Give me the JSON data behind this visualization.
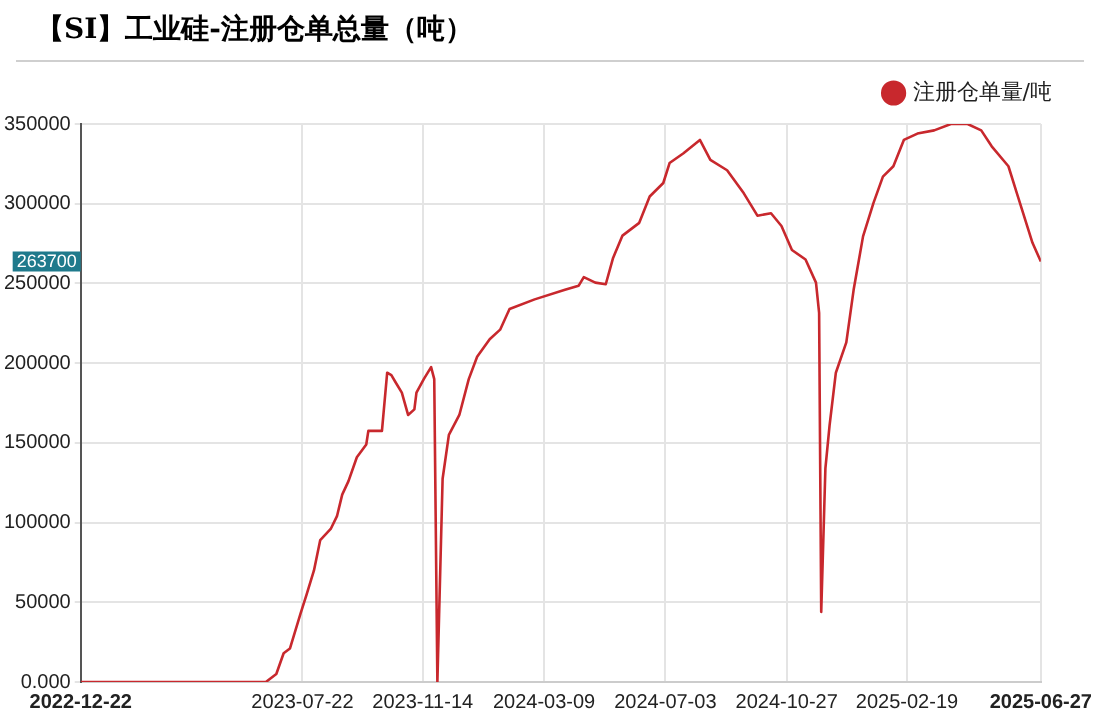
{
  "chart_data": {
    "type": "line",
    "title": "【SI】工业硅-注册仓单总量（吨）",
    "x": [
      "2022-12-22",
      "2023-06-17",
      "2023-06-27",
      "2023-07-04",
      "2023-07-10",
      "2023-07-20",
      "2023-07-26",
      "2023-08-02",
      "2023-08-08",
      "2023-08-18",
      "2023-08-24",
      "2023-08-29",
      "2023-09-04",
      "2023-09-12",
      "2023-09-21",
      "2023-09-23",
      "2023-10-06",
      "2023-10-11",
      "2023-10-15",
      "2023-10-19",
      "2023-10-25",
      "2023-10-31",
      "2023-11-06",
      "2023-11-08",
      "2023-11-15",
      "2023-11-22",
      "2023-11-25",
      "2023-11-28",
      "2023-12-03",
      "2023-12-09",
      "2023-12-19",
      "2023-12-28",
      "2024-01-05",
      "2024-01-17",
      "2024-01-27",
      "2024-02-05",
      "2024-02-29",
      "2024-03-29",
      "2024-04-11",
      "2024-04-16",
      "2024-04-27",
      "2024-05-07",
      "2024-05-14",
      "2024-05-23",
      "2024-06-08",
      "2024-06-18",
      "2024-07-01",
      "2024-07-07",
      "2024-07-20",
      "2024-08-05",
      "2024-08-15",
      "2024-08-31",
      "2024-09-16",
      "2024-09-29",
      "2024-10-12",
      "2024-10-22",
      "2024-11-01",
      "2024-11-14",
      "2024-11-24",
      "2024-11-27",
      "2024-11-29",
      "2024-12-03",
      "2024-12-07",
      "2024-12-13",
      "2024-12-23",
      "2024-12-30",
      "2025-01-08",
      "2025-01-18",
      "2025-01-27",
      "2025-02-06",
      "2025-02-16",
      "2025-03-01",
      "2025-03-17",
      "2025-04-02",
      "2025-04-18",
      "2025-05-01",
      "2025-05-11",
      "2025-05-27",
      "2025-06-06",
      "2025-06-19",
      "2025-06-27"
    ],
    "series": [
      {
        "name": "注册仓单量/吨",
        "color": "#c8282d",
        "values": [
          0,
          0,
          5000,
          18000,
          21000,
          42500,
          55000,
          70000,
          89000,
          96000,
          104000,
          117500,
          126000,
          141000,
          149000,
          157500,
          157500,
          194000,
          192500,
          188000,
          181500,
          167500,
          171000,
          181500,
          190000,
          197500,
          190000,
          0,
          127500,
          155000,
          167500,
          190000,
          204000,
          215000,
          221000,
          234000,
          240000,
          246000,
          248500,
          254000,
          250500,
          249500,
          266000,
          280000,
          288000,
          304500,
          313000,
          325500,
          331500,
          340000,
          327500,
          321000,
          306500,
          292500,
          294000,
          286000,
          271000,
          265000,
          250500,
          231500,
          44000,
          134000,
          161000,
          194000,
          213000,
          246000,
          279500,
          300500,
          317000,
          323500,
          340000,
          344000,
          346000,
          350000,
          350000,
          346000,
          336000,
          323500,
          302500,
          275500,
          263700
        ]
      }
    ],
    "xlim": [
      "2022-12-22",
      "2025-06-27"
    ],
    "xticks": [
      "2022-12-22",
      "2023-07-22",
      "2023-11-14",
      "2024-03-09",
      "2024-07-03",
      "2024-10-27",
      "2025-02-19",
      "2025-06-27"
    ],
    "ylim": [
      0,
      350000
    ],
    "yticks": [
      {
        "value": 0,
        "label": "0.000"
      },
      50000,
      100000,
      150000,
      200000,
      250000,
      300000,
      350000
    ],
    "annotations": [
      "263700"
    ],
    "grid": true,
    "legend": "top right",
    "marker": "none",
    "line_style": "solid"
  }
}
